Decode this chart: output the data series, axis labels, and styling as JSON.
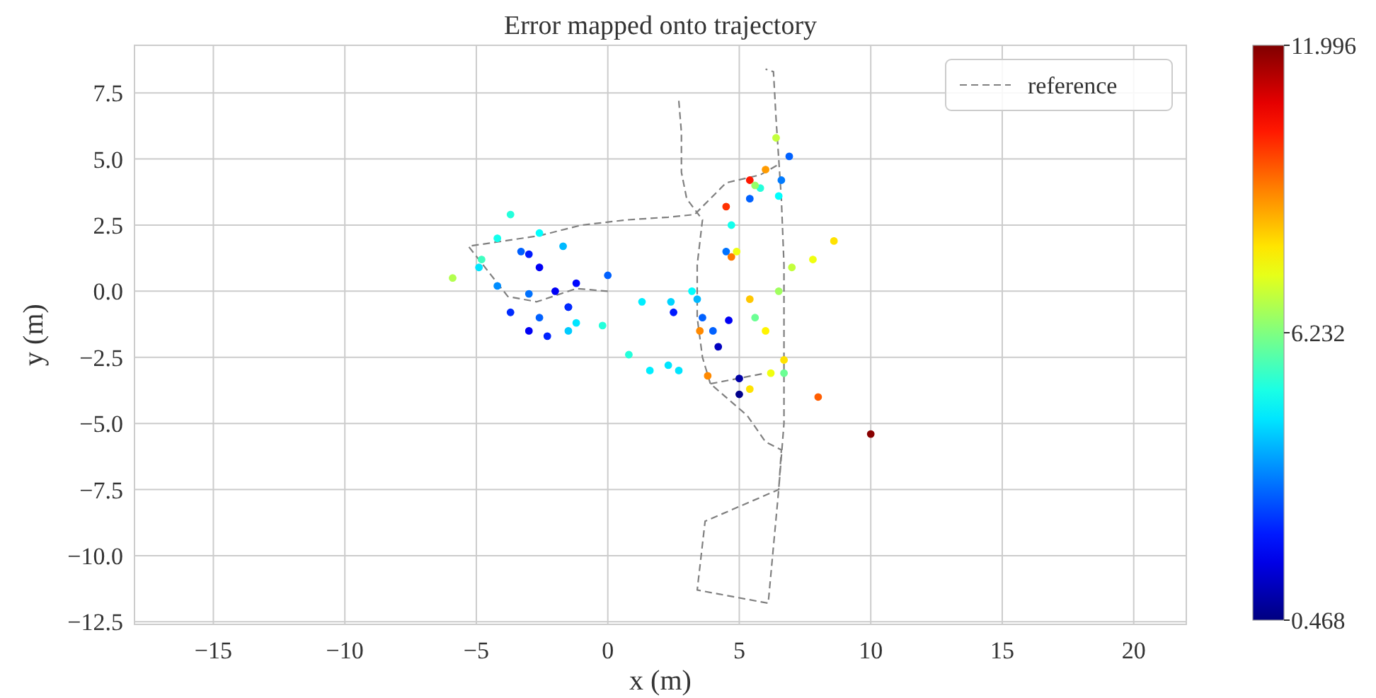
{
  "chart_data": {
    "type": "scatter",
    "title": "Error mapped onto trajectory",
    "xlabel": "x (m)",
    "ylabel": "y (m)",
    "xlim": [
      -18,
      22
    ],
    "ylim": [
      -12.6,
      9.3
    ],
    "xticks": [
      {
        "value": -15,
        "label": "−15"
      },
      {
        "value": -10,
        "label": "−10"
      },
      {
        "value": -5,
        "label": "−5"
      },
      {
        "value": 0,
        "label": "0"
      },
      {
        "value": 5,
        "label": "5"
      },
      {
        "value": 10,
        "label": "10"
      },
      {
        "value": 15,
        "label": "15"
      },
      {
        "value": 20,
        "label": "20"
      }
    ],
    "yticks": [
      {
        "value": -12.5,
        "label": "−12.5"
      },
      {
        "value": -10,
        "label": "−10.0"
      },
      {
        "value": -7.5,
        "label": "−7.5"
      },
      {
        "value": -5,
        "label": "−5.0"
      },
      {
        "value": -2.5,
        "label": "−2.5"
      },
      {
        "value": 0,
        "label": "0.0"
      },
      {
        "value": 2.5,
        "label": "2.5"
      },
      {
        "value": 5,
        "label": "5.0"
      },
      {
        "value": 7.5,
        "label": "7.5"
      }
    ],
    "clim": [
      0.468,
      11.996
    ],
    "cticks": [
      0.468,
      6.232,
      11.996
    ],
    "grid": true,
    "legend": "top right",
    "series": [
      {
        "name": "reference",
        "color": "#808080",
        "type": "line",
        "line_style": "dashed",
        "x": [
          2.7,
          2.8,
          2.8,
          3.0,
          3.6,
          3.4,
          3.4,
          3.6,
          3.9,
          5.3,
          6.0,
          6.6,
          6.5,
          6.1,
          3.4,
          3.7,
          6.5,
          6.7,
          6.7,
          6.7,
          6.6,
          6.4,
          6.3,
          6.0,
          null,
          0,
          -1.2,
          -2.7,
          -3.8,
          -5.3,
          -2.6,
          -1.0,
          0.75,
          2.3,
          3.3,
          4.5,
          5.8,
          6.5,
          null,
          3.9,
          6.0
        ],
        "values": [
          7.2,
          6.0,
          4.5,
          3.5,
          2.7,
          1.0,
          -1.0,
          -2.5,
          -3.5,
          -4.7,
          -5.7,
          -6.0,
          -7.5,
          -11.8,
          -11.3,
          -8.7,
          -7.5,
          -5.0,
          -2.0,
          1.0,
          3.5,
          6.5,
          8.3,
          8.4,
          null,
          0,
          0.1,
          -0.4,
          -0.2,
          1.7,
          2.1,
          2.5,
          2.7,
          2.8,
          2.9,
          4.1,
          4.4,
          4.8,
          null,
          -3.5,
          -3.1
        ]
      },
      {
        "marker": "circle",
        "colors": [
          "#0008ff",
          "#0008ff",
          "#0000f5",
          "#0000f5",
          "#001aff",
          "#0061ff",
          "#0072ff",
          "#0061ff",
          "#002bff",
          "#00e5ff",
          "#24ffdb",
          "#00cbff",
          "#0023ff",
          "#0000f5",
          "#002bff",
          "#008dff",
          "#00e5ff",
          "#b2ff4d",
          "#3fffc0",
          "#13ffec",
          "#24ffdb",
          "#01fffe",
          "#00b9ff",
          "#0061ff",
          "#001aff",
          "#0000f5",
          "#0061ff",
          "#00d4ff",
          "#00eeff",
          "#24ffdb",
          "#00eeff",
          "#00e5ff",
          "#01fffe",
          "#13ffec",
          "#24ffdb",
          "#01fffe",
          "#0061ff",
          "#007bff",
          "#0061ff",
          "#0072ff",
          "#00b9ff",
          "#00e5ff",
          "#ff8900",
          "#ff7800",
          "#ff3100",
          "#ff1700",
          "#ff9b00",
          "#c3ff3c",
          "#97ff68",
          "#f0ff0f",
          "#ffc700",
          "#fff400",
          "#ffe200",
          "#f0ff0f",
          "#ffe200",
          "#ff8900",
          "#0000c0",
          "#0000a6",
          "#00008b",
          "#0061ff",
          "#6bff94",
          "#ff5d00",
          "#880000",
          null,
          "#ffe200",
          "#f0ff0f",
          "#c3ff3c",
          "#a0ff5f",
          "#6bff94"
        ],
        "x": [
          -1.2,
          -1.5,
          -2.0,
          -2.6,
          -3.0,
          -3.3,
          -3.0,
          -2.6,
          -1.5,
          -1.2,
          -0.2,
          -1.5,
          -2.3,
          -3.0,
          -3.7,
          -4.2,
          -4.9,
          -5.9,
          -4.8,
          -4.2,
          -3.7,
          -2.6,
          -1.7,
          0.0,
          2.5,
          4.6,
          3.6,
          2.4,
          1.3,
          0.8,
          1.6,
          2.3,
          3.2,
          4.7,
          5.8,
          6.5,
          6.9,
          6.6,
          5.4,
          4.5,
          3.4,
          2.7,
          3.5,
          4.7,
          4.5,
          5.4,
          6.0,
          6.4,
          5.6,
          4.9,
          5.4,
          6.0,
          6.7,
          6.2,
          5.4,
          3.8,
          4.2,
          5.0,
          5.0,
          4.0,
          6.7,
          8.0,
          10.0,
          null,
          8.6,
          7.8,
          7.0,
          6.5,
          5.6
        ],
        "values": [
          0.3,
          -0.6,
          0.0,
          0.9,
          1.4,
          1.5,
          -0.1,
          -1.0,
          -0.6,
          -1.2,
          -1.3,
          -1.5,
          -1.7,
          -1.5,
          -0.8,
          0.2,
          0.9,
          0.5,
          1.2,
          2.0,
          2.9,
          2.2,
          1.7,
          0.6,
          -0.8,
          -1.1,
          -1.0,
          -0.4,
          -0.4,
          -2.4,
          -3.0,
          -2.8,
          0.0,
          2.5,
          3.9,
          3.6,
          5.1,
          4.2,
          3.5,
          1.5,
          -0.3,
          -3.0,
          -1.5,
          1.3,
          3.2,
          4.2,
          4.6,
          5.8,
          4.0,
          1.5,
          -0.3,
          -1.5,
          -2.6,
          -3.1,
          -3.7,
          -3.2,
          -2.1,
          -3.3,
          -3.9,
          -1.5,
          -3.1,
          -4.0,
          -5.4,
          null,
          1.9,
          1.2,
          0.9,
          0.0,
          -1.0
        ],
        "cvalues": [
          2.0,
          2.0,
          1.8,
          1.8,
          2.2,
          3.0,
          3.2,
          3.0,
          2.4,
          4.5,
          5.2,
          4.2,
          2.3,
          1.8,
          2.4,
          3.5,
          4.5,
          6.8,
          5.5,
          5.0,
          5.2,
          4.8,
          4.0,
          3.0,
          2.2,
          1.8,
          3.0,
          4.3,
          4.6,
          5.2,
          4.6,
          4.5,
          4.8,
          5.0,
          5.2,
          4.8,
          3.0,
          3.3,
          3.0,
          3.2,
          4.0,
          4.5,
          9.0,
          9.2,
          10.0,
          10.3,
          8.8,
          7.0,
          6.5,
          7.5,
          8.3,
          7.8,
          8.0,
          7.5,
          8.0,
          9.0,
          1.2,
          0.9,
          0.6,
          3.0,
          6.0,
          9.5,
          11.9,
          null,
          8.0,
          7.5,
          7.0,
          6.6,
          6.0
        ]
      }
    ]
  }
}
